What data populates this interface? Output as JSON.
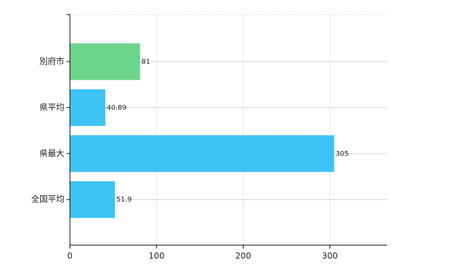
{
  "chart_data": {
    "type": "hbar",
    "categories": [
      "別府市",
      "県平均",
      "県最大",
      "全国平均"
    ],
    "values": [
      81,
      40.89,
      305,
      51.9
    ],
    "colors": [
      "#6dd48c",
      "#3ec3f7",
      "#3ec3f7",
      "#3ec3f7"
    ],
    "xlim": [
      0,
      366
    ],
    "xticks": [
      0,
      100,
      200,
      300
    ],
    "grid": true
  }
}
